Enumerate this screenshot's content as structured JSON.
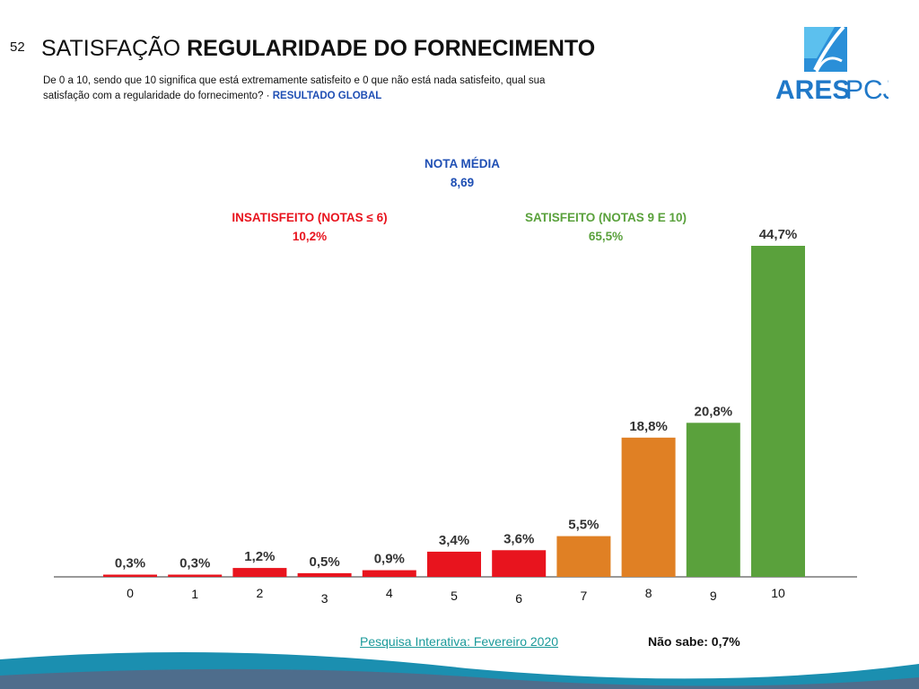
{
  "page_number": "52",
  "title_regular": "SATISFAÇÃO",
  "title_bold": "REGULARIDADE DO FORNECIMENTO",
  "question": "De 0 a 10, sendo que 10 significa que está extremamente satisfeito e 0 que não está nada satisfeito, qual sua satisfação com a regularidade do fornecimento? ·",
  "question_highlight": "RESULTADO GLOBAL",
  "logo": {
    "text_a": "ARES",
    "text_b": "PCJ"
  },
  "nota": {
    "label": "NOTA MÉDIA",
    "value": "8,69"
  },
  "insatisfeito": {
    "label": "INSATISFEITO (NOTAS ≤ 6)",
    "value": "10,2%"
  },
  "satisfeito": {
    "label": "SATISFEITO (NOTAS 9 E 10)",
    "value": "65,5%"
  },
  "footer": {
    "source": "Pesquisa Interativa: Fevereiro 2020",
    "nao_sabe": "Não sabe: 0,7%"
  },
  "colors": {
    "red": "#e8141e",
    "orange": "#e08024",
    "green": "#5aa13c",
    "blue": "#1f4fb4"
  },
  "chart_data": {
    "type": "bar",
    "categories": [
      "0",
      "1",
      "2",
      "3",
      "4",
      "5",
      "6",
      "7",
      "8",
      "9",
      "10"
    ],
    "values": [
      0.3,
      0.3,
      1.2,
      0.5,
      0.9,
      3.4,
      3.6,
      5.5,
      18.8,
      20.8,
      44.7
    ],
    "labels": [
      "0,3%",
      "0,3%",
      "1,2%",
      "0,5%",
      "0,9%",
      "3,4%",
      "3,6%",
      "5,5%",
      "18,8%",
      "20,8%",
      "44,7%"
    ],
    "groups": [
      "red",
      "red",
      "red",
      "red",
      "red",
      "red",
      "red",
      "orange",
      "orange",
      "green",
      "green"
    ],
    "ylim": [
      0,
      44.7
    ],
    "grid": false
  }
}
